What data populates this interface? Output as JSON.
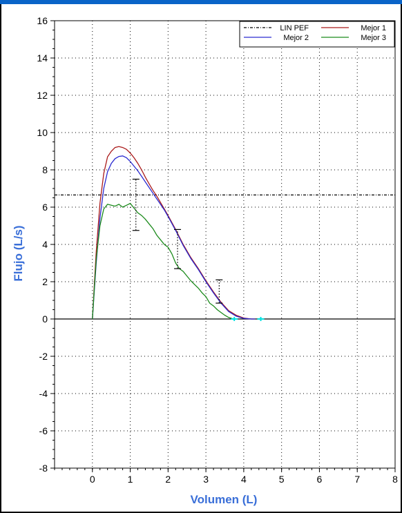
{
  "chart_data": {
    "type": "line",
    "xlabel": "Volumen (L)",
    "ylabel": "Flujo (L/s)",
    "xlim": [
      -1,
      8
    ],
    "ylim": [
      -8,
      16
    ],
    "xticks": [
      0,
      1,
      2,
      3,
      4,
      5,
      6,
      7,
      8
    ],
    "yticks": [
      -8,
      -6,
      -4,
      -2,
      0,
      2,
      4,
      6,
      8,
      10,
      12,
      14,
      16
    ],
    "grid": "dotted",
    "legend_position": "top-right",
    "colors": {
      "lin_pef": "#000000",
      "mejor1": "#aa1a1a",
      "mejor2": "#2a2ad0",
      "mejor3": "#1a8a1a",
      "zero_line": "#000000",
      "end_markers": "#00e0e0",
      "error_bars": "#000000",
      "axis_title": "#3a6fd8"
    },
    "series": [
      {
        "name": "LIN PEF",
        "style": "dash-dot",
        "x": [
          -1,
          8
        ],
        "y": [
          6.65,
          6.65
        ]
      },
      {
        "name": "Mejor 1",
        "x": [
          0,
          0.05,
          0.1,
          0.2,
          0.3,
          0.4,
          0.5,
          0.6,
          0.7,
          0.8,
          0.9,
          1.0,
          1.1,
          1.2,
          1.3,
          1.4,
          1.5,
          1.6,
          1.7,
          1.8,
          1.9,
          2.0,
          2.2,
          2.4,
          2.6,
          2.8,
          3.0,
          3.2,
          3.4,
          3.6,
          3.8,
          4.0,
          4.2,
          4.3
        ],
        "y": [
          0,
          1.8,
          3.6,
          6.2,
          7.8,
          8.7,
          9.0,
          9.2,
          9.25,
          9.2,
          9.1,
          8.9,
          8.65,
          8.35,
          8.0,
          7.6,
          7.25,
          6.9,
          6.6,
          6.25,
          5.9,
          5.55,
          4.8,
          4.0,
          3.3,
          2.7,
          2.05,
          1.45,
          0.9,
          0.45,
          0.2,
          0.05,
          0.0,
          0.0
        ]
      },
      {
        "name": "Mejor 2",
        "x": [
          0,
          0.05,
          0.1,
          0.2,
          0.3,
          0.4,
          0.5,
          0.6,
          0.7,
          0.8,
          0.9,
          1.0,
          1.1,
          1.2,
          1.3,
          1.4,
          1.5,
          1.6,
          1.7,
          1.8,
          1.9,
          2.0,
          2.2,
          2.4,
          2.6,
          2.8,
          3.0,
          3.2,
          3.4,
          3.6,
          3.8,
          4.0,
          4.2,
          4.3
        ],
        "y": [
          0,
          1.5,
          3.0,
          5.4,
          7.0,
          7.9,
          8.35,
          8.6,
          8.72,
          8.75,
          8.65,
          8.45,
          8.2,
          7.95,
          7.65,
          7.35,
          7.05,
          6.75,
          6.45,
          6.15,
          5.85,
          5.5,
          4.75,
          3.95,
          3.25,
          2.65,
          2.0,
          1.4,
          0.85,
          0.4,
          0.15,
          0.03,
          0.0,
          0.0
        ]
      },
      {
        "name": "Mejor 3",
        "x": [
          0,
          0.05,
          0.1,
          0.2,
          0.3,
          0.4,
          0.5,
          0.6,
          0.7,
          0.8,
          0.9,
          1.0,
          1.1,
          1.2,
          1.3,
          1.4,
          1.5,
          1.6,
          1.7,
          1.8,
          1.9,
          2.0,
          2.1,
          2.2,
          2.3,
          2.4,
          2.5,
          2.6,
          2.7,
          2.8,
          2.9,
          3.0,
          3.1,
          3.2,
          3.3,
          3.4,
          3.5,
          3.6,
          3.7,
          3.8
        ],
        "y": [
          0,
          1.6,
          3.2,
          5.0,
          5.9,
          6.15,
          6.1,
          6.05,
          6.15,
          6.0,
          6.1,
          6.2,
          5.95,
          5.7,
          5.55,
          5.35,
          5.1,
          4.85,
          4.5,
          4.25,
          4.0,
          3.85,
          3.5,
          3.0,
          2.7,
          2.55,
          2.3,
          2.05,
          1.85,
          1.65,
          1.4,
          1.2,
          0.85,
          0.7,
          0.5,
          0.35,
          0.2,
          0.08,
          0.02,
          0.0
        ]
      }
    ],
    "error_bars": [
      {
        "x": 1.15,
        "low": 4.75,
        "high": 7.5
      },
      {
        "x": 2.25,
        "low": 2.7,
        "high": 4.8
      },
      {
        "x": 3.35,
        "low": 0.85,
        "high": 2.1
      }
    ],
    "end_markers": {
      "x": [
        3.75,
        4.45
      ],
      "y": 0
    }
  }
}
